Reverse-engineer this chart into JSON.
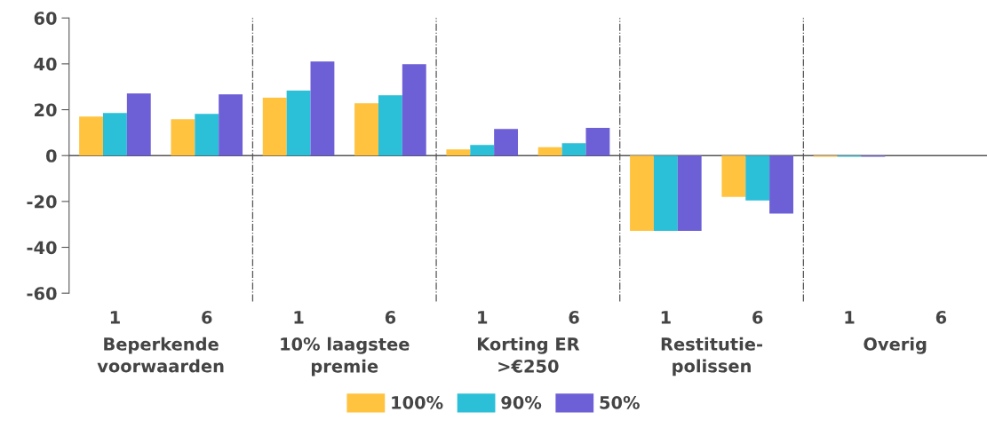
{
  "chart_data": {
    "type": "bar",
    "categories": [
      "1",
      "6",
      "1",
      "6",
      "1",
      "6",
      "1",
      "6",
      "1",
      "6"
    ],
    "series": [
      {
        "name": "100%",
        "color": "#ffc33f",
        "values": [
          17.0,
          15.9,
          25.2,
          22.8,
          2.7,
          3.7,
          -32.8,
          -18.0,
          -0.5,
          0
        ]
      },
      {
        "name": "90%",
        "color": "#2bbfd8",
        "values": [
          18.6,
          18.2,
          28.3,
          26.3,
          4.6,
          5.4,
          -32.8,
          -19.6,
          -0.5,
          0
        ]
      },
      {
        "name": "50%",
        "color": "#6d5fd5",
        "values": [
          27.1,
          26.7,
          41.0,
          39.9,
          11.6,
          12.1,
          -32.8,
          -25.3,
          -0.5,
          0
        ]
      }
    ],
    "annotations": [
      "Beperkende\nvoorwaarden",
      "10% laagstee\npremie",
      "Korting ER\n>€250",
      "Restitutie-\npolissen",
      "Overig"
    ],
    "ylim": [
      -60,
      60
    ],
    "yticks": [
      -60,
      -40,
      -20,
      0,
      20,
      40,
      60
    ],
    "grid": false,
    "legend": "bottom"
  }
}
